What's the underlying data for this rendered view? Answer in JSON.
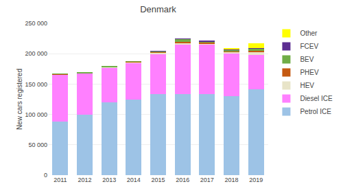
{
  "chart_data": {
    "type": "bar",
    "stacked": true,
    "title": "Denmark",
    "ylabel": "New cars registered",
    "categories": [
      "2011",
      "2012",
      "2013",
      "2014",
      "2015",
      "2016",
      "2017",
      "2018",
      "2019"
    ],
    "series": [
      {
        "name": "Petrol ICE",
        "color": "#9dc3e6",
        "values": [
          88000,
          100000,
          120000,
          125000,
          133000,
          133000,
          133000,
          130000,
          141000
        ]
      },
      {
        "name": "Diesel ICE",
        "color": "#ff80ff",
        "values": [
          78000,
          68000,
          57000,
          60000,
          67000,
          83000,
          82000,
          70000,
          57000
        ]
      },
      {
        "name": "HEV",
        "color": "#e8e4c8",
        "values": [
          0,
          0,
          1000,
          1000,
          1500,
          1500,
          2000,
          3000,
          5000
        ]
      },
      {
        "name": "PHEV",
        "color": "#c55a11",
        "values": [
          300,
          300,
          300,
          700,
          1500,
          1500,
          1500,
          1500,
          1500
        ]
      },
      {
        "name": "BEV",
        "color": "#70ad47",
        "values": [
          700,
          700,
          700,
          800,
          1000,
          5000,
          2000,
          2000,
          4000
        ]
      },
      {
        "name": "FCEV",
        "color": "#5c2d91",
        "values": [
          0,
          0,
          0,
          0,
          100,
          200,
          200,
          300,
          300
        ]
      },
      {
        "name": "Other",
        "color": "#ffff00",
        "values": [
          0,
          0,
          0,
          0,
          0,
          0,
          0,
          3000,
          8000
        ]
      }
    ],
    "ylim": [
      0,
      250000
    ],
    "yticks": [
      0,
      {
        "value": 50000,
        "label": "50 000"
      },
      {
        "value": 100000,
        "label": "100 000"
      },
      {
        "value": 150000,
        "label": "150 000"
      },
      {
        "value": 200000,
        "label": "200 000"
      },
      {
        "value": 250000,
        "label": "250 000"
      }
    ],
    "grid": true,
    "legend": "right"
  }
}
